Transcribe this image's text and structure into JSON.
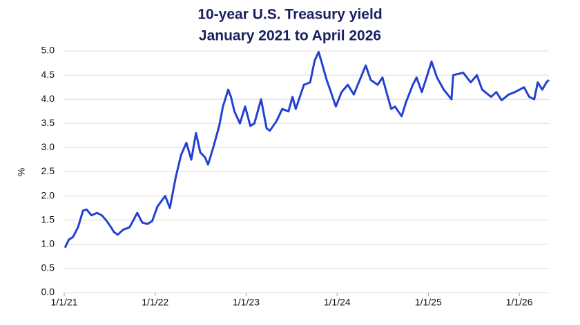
{
  "chart_data": {
    "type": "line",
    "title": "10-year U.S. Treasury yield",
    "subtitle": "January 2021 to April 2026",
    "y_label": "%",
    "x": [
      "1/4/21",
      "1/20/21",
      "2/5/21",
      "2/25/21",
      "3/18/21",
      "4/1/21",
      "4/20/21",
      "5/12/21",
      "6/1/21",
      "6/18/21",
      "7/8/21",
      "7/20/21",
      "8/4/21",
      "8/25/21",
      "9/20/21",
      "10/21/21",
      "11/10/21",
      "12/1/21",
      "12/20/21",
      "1/10/22",
      "2/10/22",
      "3/1/22",
      "3/25/22",
      "4/15/22",
      "5/6/22",
      "5/26/22",
      "6/14/22",
      "7/1/22",
      "7/20/22",
      "8/1/22",
      "8/22/22",
      "9/15/22",
      "9/30/22",
      "10/21/22",
      "11/1/22",
      "11/15/22",
      "12/7/22",
      "12/28/22",
      "1/18/23",
      "2/3/23",
      "3/2/23",
      "3/24/23",
      "4/6/23",
      "5/3/23",
      "5/26/23",
      "6/20/23",
      "7/6/23",
      "7/19/23",
      "8/21/23",
      "9/15/23",
      "10/3/23",
      "10/19/23",
      "11/1/23",
      "11/20/23",
      "12/4/23",
      "12/27/23",
      "1/19/24",
      "2/13/24",
      "3/8/24",
      "4/25/24",
      "5/15/24",
      "6/12/24",
      "7/1/24",
      "7/17/24",
      "8/5/24",
      "8/20/24",
      "9/16/24",
      "10/4/24",
      "10/31/24",
      "11/15/24",
      "12/6/24",
      "12/31/24",
      "1/14/25",
      "2/5/25",
      "3/4/25",
      "4/4/25",
      "4/11/25",
      "5/21/25",
      "6/20/25",
      "7/15/25",
      "8/5/25",
      "9/10/25",
      "10/1/25",
      "10/22/25",
      "11/20/25",
      "12/15/25",
      "1/20/26",
      "2/10/26",
      "3/2/26",
      "3/16/26",
      "4/3/26",
      "4/20/26",
      "4/30/26"
    ],
    "series": [
      {
        "name": "10-year U.S. Treasury yield",
        "color": "#2341d1",
        "values": [
          0.93,
          1.1,
          1.15,
          1.35,
          1.7,
          1.72,
          1.6,
          1.65,
          1.6,
          1.5,
          1.35,
          1.25,
          1.2,
          1.3,
          1.35,
          1.65,
          1.45,
          1.42,
          1.48,
          1.78,
          2.0,
          1.75,
          2.4,
          2.85,
          3.1,
          2.75,
          3.3,
          2.9,
          2.8,
          2.65,
          3.0,
          3.45,
          3.85,
          4.2,
          4.05,
          3.75,
          3.5,
          3.85,
          3.45,
          3.5,
          4.0,
          3.4,
          3.35,
          3.55,
          3.8,
          3.75,
          4.05,
          3.8,
          4.3,
          4.35,
          4.8,
          4.98,
          4.75,
          4.4,
          4.2,
          3.85,
          4.15,
          4.3,
          4.1,
          4.7,
          4.4,
          4.3,
          4.45,
          4.15,
          3.8,
          3.85,
          3.65,
          3.95,
          4.3,
          4.45,
          4.15,
          4.55,
          4.78,
          4.45,
          4.2,
          4.0,
          4.5,
          4.55,
          4.35,
          4.5,
          4.2,
          4.05,
          4.15,
          3.98,
          4.1,
          4.15,
          4.25,
          4.05,
          4.0,
          4.35,
          4.2,
          4.35,
          4.4
        ]
      }
    ],
    "xlim": [
      "1/1/21",
      "4/30/26"
    ],
    "xticks": [
      "1/1/21",
      "1/1/22",
      "1/1/23",
      "1/1/24",
      "1/1/25",
      "1/1/26"
    ],
    "ylim": [
      0,
      5
    ],
    "yticks": [
      {
        "value": 0,
        "label": "0.0"
      },
      0.5,
      {
        "value": 1,
        "label": "1.0"
      },
      1.5,
      {
        "value": 2,
        "label": "2.0"
      },
      2.5,
      {
        "value": 3,
        "label": "3.0"
      },
      3.5,
      {
        "value": 4,
        "label": "4.0"
      },
      4.5,
      {
        "value": 5,
        "label": "5.0"
      }
    ],
    "grid": true
  }
}
